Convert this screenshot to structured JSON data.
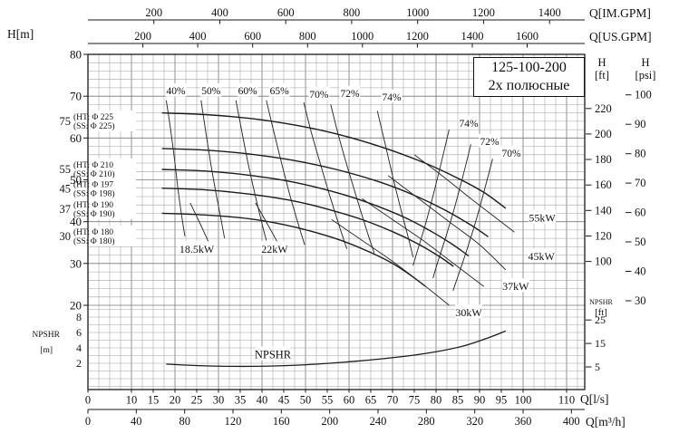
{
  "title_box": {
    "line1": "125-100-200",
    "line2": "2х полюсные"
  },
  "axis_titles": {
    "top_imperial": "Q[IM.GPM]",
    "top_us": "Q[US.GPM]",
    "left_head": "H[m]",
    "bottom_lps": "Q[l/s]",
    "bottom_m3h": "Q[m³/h]"
  },
  "right_headers": {
    "ft_1": "H",
    "ft_2": "[ft]",
    "psi_1": "H",
    "psi_2": "[psi]",
    "npshr_1": "NPSHR",
    "npshr_2": "[ft]"
  },
  "left_npshr_header": {
    "line1": "NPSHR",
    "line2": "[m]"
  },
  "chart_data": {
    "type": "line",
    "title": "125-100-200",
    "subtitle": "2х полюсные",
    "grid": true,
    "x_axis": {
      "label": "Q[l/s]",
      "range": [
        0,
        114
      ],
      "ticks": [
        0,
        10,
        15,
        20,
        25,
        30,
        35,
        40,
        45,
        50,
        55,
        60,
        65,
        70,
        75,
        80,
        85,
        90,
        95,
        100,
        110
      ]
    },
    "x_axis_m3h": {
      "label": "Q[m³/h]",
      "ticks": [
        0,
        40,
        80,
        120,
        160,
        200,
        240,
        280,
        320,
        360,
        400
      ]
    },
    "x_axis_us_gpm": {
      "label": "Q[US.GPM]",
      "ticks": [
        200,
        400,
        600,
        800,
        1000,
        1200,
        1400,
        1600
      ]
    },
    "x_axis_im_gpm": {
      "label": "Q[IM.GPM]",
      "ticks": [
        200,
        400,
        600,
        800,
        1000,
        1200,
        1400
      ]
    },
    "y_axis_m": {
      "label": "H[m]",
      "range": [
        20,
        80
      ],
      "ticks": [
        80,
        70,
        60,
        50,
        40,
        30,
        20
      ]
    },
    "y_axis_ft": {
      "label": "H [ft]",
      "ticks": [
        220,
        200,
        180,
        160,
        140,
        120,
        100
      ]
    },
    "y_axis_psi": {
      "label": "H [psi]",
      "ticks": [
        100,
        90,
        80,
        70,
        60,
        50,
        40,
        30
      ]
    },
    "npshr_axis_m": {
      "label": "NPSHR [m]",
      "ticks": [
        8,
        6,
        4,
        2
      ]
    },
    "npshr_axis_ft": {
      "label": "NPSHR [ft]",
      "ticks": [
        25,
        15,
        5
      ]
    },
    "pump_curves": [
      {
        "name": "Φ 225",
        "motor_kw": "75",
        "ht": "(HT: Φ 225",
        "ss": "(SS: Φ 225)",
        "label_h": 64.1,
        "points": [
          [
            17,
            66
          ],
          [
            27,
            65.6
          ],
          [
            37,
            64.7
          ],
          [
            47,
            63.2
          ],
          [
            57,
            61
          ],
          [
            67,
            58
          ],
          [
            77,
            54.2
          ],
          [
            85,
            50.4
          ],
          [
            91,
            47
          ],
          [
            96,
            43.2
          ]
        ]
      },
      {
        "name": "Φ 210",
        "motor_kw": "55",
        "ht": "(HT: Φ 210",
        "ss": "(SS: Φ 210)",
        "label_h": 52.6,
        "points": [
          [
            17,
            57.5
          ],
          [
            27,
            57.1
          ],
          [
            37,
            56.2
          ],
          [
            47,
            54.7
          ],
          [
            57,
            52.5
          ],
          [
            67,
            49.5
          ],
          [
            75,
            46.3
          ],
          [
            82,
            42.8
          ],
          [
            88,
            39.2
          ],
          [
            92,
            36.4
          ]
        ]
      },
      {
        "name": "Φ 197",
        "motor_kw": "45",
        "ht": "(HT: Φ 197",
        "ss": "(SS: Φ 198)",
        "label_h": 47.9,
        "points": [
          [
            17,
            52.5
          ],
          [
            27,
            52.1
          ],
          [
            37,
            51.1
          ],
          [
            47,
            49.5
          ],
          [
            57,
            47
          ],
          [
            65,
            44.3
          ],
          [
            73,
            40.9
          ],
          [
            79,
            37.6
          ],
          [
            84,
            34.4
          ],
          [
            87.5,
            31.8
          ]
        ]
      },
      {
        "name": "Φ 190",
        "motor_kw": "37",
        "ht": "(HT: Φ 190",
        "ss": "(SS: Φ 190)",
        "label_h": 43.1,
        "points": [
          [
            17,
            48
          ],
          [
            27,
            47.6
          ],
          [
            37,
            46.6
          ],
          [
            47,
            45
          ],
          [
            55,
            43
          ],
          [
            63,
            40.5
          ],
          [
            70,
            37.6
          ],
          [
            76,
            34.6
          ],
          [
            81,
            31.5
          ],
          [
            84,
            29.3
          ]
        ]
      },
      {
        "name": "Φ 180",
        "motor_kw": "30",
        "ht": "(HT: Φ 180",
        "ss": "(SS: Φ 180)",
        "label_h": 36.6,
        "points": [
          [
            17,
            42
          ],
          [
            27,
            41.6
          ],
          [
            37,
            40.7
          ],
          [
            45,
            39.3
          ],
          [
            52,
            37.5
          ],
          [
            59,
            35.2
          ],
          [
            65,
            32.6
          ],
          [
            70,
            30
          ],
          [
            74,
            27.3
          ],
          [
            77.5,
            24.6
          ]
        ]
      }
    ],
    "efficiency_contours": [
      {
        "label": "40%",
        "side": "left",
        "label_pos": [
          20.2,
          71.3
        ],
        "points": [
          [
            18,
            69
          ],
          [
            19,
            62
          ],
          [
            20,
            54
          ],
          [
            20.8,
            47
          ],
          [
            21.6,
            41
          ],
          [
            22.3,
            36.5
          ]
        ]
      },
      {
        "label": "50%",
        "side": "left",
        "label_pos": [
          28.3,
          71.3
        ],
        "points": [
          [
            26,
            69
          ],
          [
            27,
            62
          ],
          [
            28.2,
            54
          ],
          [
            29.4,
            47
          ],
          [
            30.6,
            40.5
          ],
          [
            31.4,
            36
          ]
        ]
      },
      {
        "label": "60%",
        "side": "left",
        "label_pos": [
          36.7,
          71.3
        ],
        "points": [
          [
            34,
            69
          ],
          [
            35.3,
            62
          ],
          [
            36.8,
            54
          ],
          [
            38.4,
            46.5
          ],
          [
            40,
            39.5
          ],
          [
            41,
            35.5
          ]
        ]
      },
      {
        "label": "65%",
        "side": "left",
        "label_pos": [
          44,
          71.3
        ],
        "points": [
          [
            41,
            69
          ],
          [
            42.6,
            62
          ],
          [
            44.5,
            54
          ],
          [
            46.5,
            46
          ],
          [
            48.6,
            38.5
          ],
          [
            49.8,
            34.5
          ]
        ]
      },
      {
        "label": "70%",
        "side": "left",
        "label_pos": [
          53.1,
          70.5
        ],
        "points": [
          [
            49.6,
            68.5
          ],
          [
            51.3,
            61.5
          ],
          [
            53.5,
            53.5
          ],
          [
            55.8,
            45.5
          ],
          [
            58.2,
            37.5
          ],
          [
            59.5,
            33.5
          ]
        ]
      },
      {
        "label": "72%",
        "side": "left",
        "label_pos": [
          60.2,
          70.7
        ],
        "points": [
          [
            55.8,
            68
          ],
          [
            57.6,
            60.5
          ],
          [
            59.8,
            52.5
          ],
          [
            62.1,
            44.5
          ],
          [
            64.5,
            36.5
          ],
          [
            65.8,
            32.5
          ]
        ]
      },
      {
        "label": "74%",
        "side": "left",
        "label_pos": [
          69.8,
          69.8
        ],
        "points": [
          [
            66.5,
            66.5
          ],
          [
            68.2,
            59
          ],
          [
            70,
            51
          ],
          [
            71.9,
            43
          ],
          [
            73.8,
            35.5
          ],
          [
            74.7,
            31.5
          ]
        ]
      },
      {
        "label": "74%",
        "side": "right",
        "label_pos": [
          87.5,
          63.5
        ],
        "points": [
          [
            83,
            62
          ],
          [
            81.3,
            54.5
          ],
          [
            79.5,
            47
          ],
          [
            77.6,
            39.5
          ],
          [
            75.7,
            33
          ],
          [
            74.7,
            29.5
          ]
        ]
      },
      {
        "label": "72%",
        "side": "right",
        "label_pos": [
          92.3,
          59.2
        ],
        "points": [
          [
            88,
            58.5
          ],
          [
            86.2,
            51
          ],
          [
            84.3,
            43.5
          ],
          [
            82.3,
            36.5
          ],
          [
            80.3,
            30
          ],
          [
            79.3,
            26.5
          ]
        ]
      },
      {
        "label": "70%",
        "side": "right",
        "label_pos": [
          97.3,
          56.4
        ],
        "points": [
          [
            93,
            55
          ],
          [
            91.1,
            47.5
          ],
          [
            89.1,
            40
          ],
          [
            87,
            33
          ],
          [
            84.9,
            26.5
          ],
          [
            83.9,
            23.5
          ]
        ]
      }
    ],
    "power_lines": [
      {
        "label": "18.5kW",
        "label_pos": [
          25,
          33.5
        ],
        "points": [
          [
            23.5,
            44.5
          ],
          [
            25.8,
            39.5
          ],
          [
            27.8,
            35
          ]
        ]
      },
      {
        "label": "22kW",
        "label_pos": [
          42.9,
          33.5
        ],
        "points": [
          [
            38.5,
            44.5
          ],
          [
            41.2,
            39.5
          ],
          [
            43.6,
            35
          ]
        ]
      },
      {
        "label": "30kW",
        "label_pos": [
          87.5,
          18.3
        ],
        "points": [
          [
            56,
            40.5
          ],
          [
            63,
            35.5
          ],
          [
            70,
            30.5
          ],
          [
            77,
            25
          ],
          [
            83,
            20
          ]
        ]
      },
      {
        "label": "37kW",
        "label_pos": [
          98.3,
          24.6
        ],
        "points": [
          [
            63,
            45.5
          ],
          [
            70,
            40.5
          ],
          [
            77,
            35.5
          ],
          [
            84,
            30
          ],
          [
            91,
            24.5
          ]
        ]
      },
      {
        "label": "45kW",
        "label_pos": [
          104.2,
          31.7
        ],
        "points": [
          [
            69,
            51
          ],
          [
            76,
            45.5
          ],
          [
            83,
            40
          ],
          [
            90,
            34.5
          ],
          [
            96,
            28.5
          ]
        ]
      },
      {
        "label": "55kW",
        "label_pos": [
          104.4,
          40.9
        ],
        "points": [
          [
            75,
            56
          ],
          [
            82,
            50.5
          ],
          [
            88,
            45.5
          ],
          [
            93,
            41.5
          ],
          [
            98,
            37.5
          ]
        ]
      }
    ],
    "npshr_curve": {
      "label": "NPSHR",
      "label_pos": [
        42.5,
        3.15
      ],
      "points": [
        [
          18,
          1.9
        ],
        [
          28,
          1.65
        ],
        [
          38,
          1.6
        ],
        [
          48,
          1.75
        ],
        [
          58,
          2.1
        ],
        [
          68,
          2.6
        ],
        [
          78,
          3.3
        ],
        [
          86,
          4.2
        ],
        [
          92,
          5.3
        ],
        [
          96,
          6.2
        ]
      ]
    }
  }
}
